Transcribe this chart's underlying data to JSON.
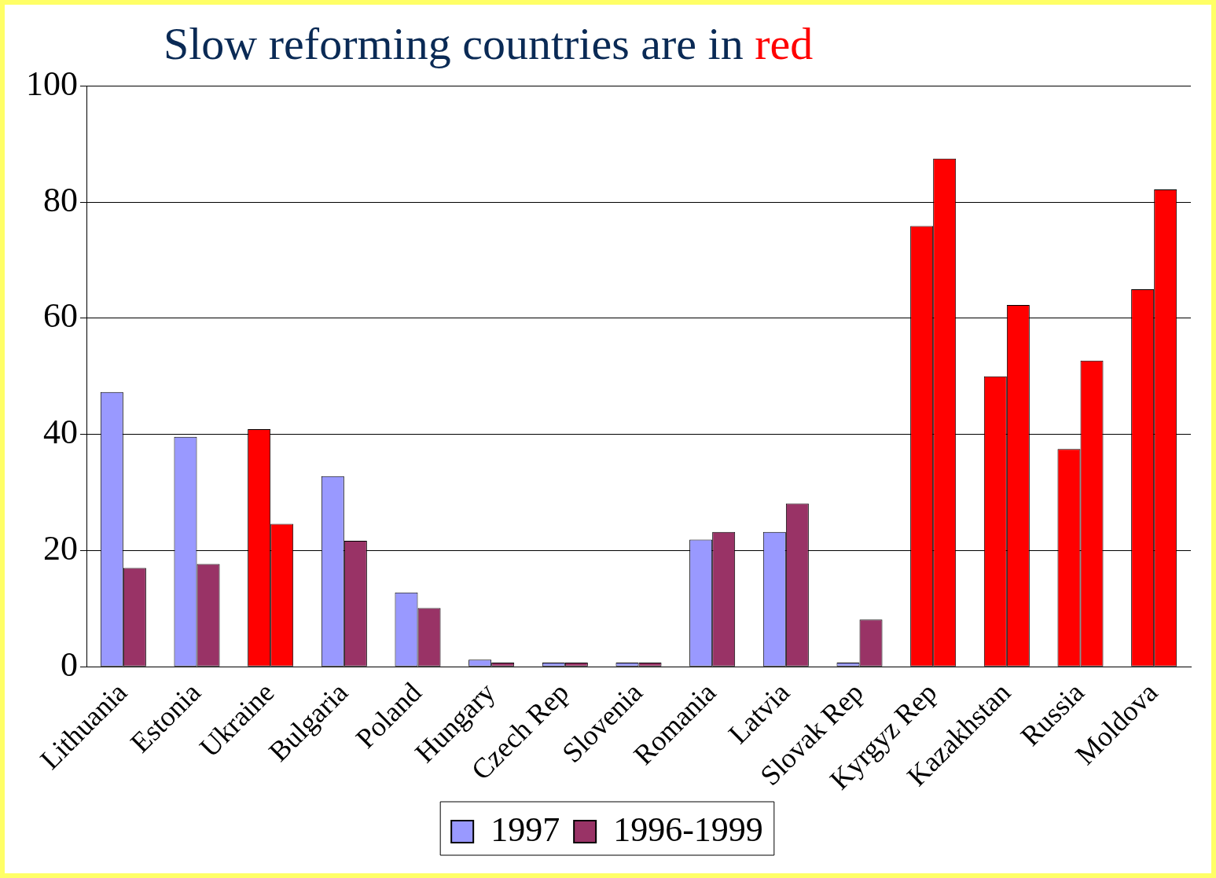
{
  "chart_data": {
    "type": "bar",
    "title": "Slow reforming countries are in red",
    "categories": [
      "Lithuania",
      "Estonia",
      "Ukraine",
      "Bulgaria",
      "Poland",
      "Hungary",
      "Czech Rep",
      "Slovenia",
      "Romania",
      "Latvia",
      "Slovak Rep",
      "Kyrgyz Rep",
      "Kazakhstan",
      "Russia",
      "Moldova"
    ],
    "series": [
      {
        "name": "1997",
        "color": "#9999ff",
        "colors": [
          "#9999ff",
          "#9999ff",
          "#ff0000",
          "#9999ff",
          "#9999ff",
          "#9999ff",
          "#9999ff",
          "#9999ff",
          "#9999ff",
          "#9999ff",
          "#9999ff",
          "#ff0000",
          "#ff0000",
          "#ff0000",
          "#ff0000"
        ],
        "values": [
          47.3,
          39.6,
          40.9,
          32.8,
          12.8,
          1.2,
          0.7,
          0.7,
          21.9,
          23.2,
          0.7,
          75.9,
          50.0,
          37.5,
          65.0
        ]
      },
      {
        "name": "1996-1999",
        "color": "#993366",
        "colors": [
          "#993366",
          "#993366",
          "#ff0000",
          "#993366",
          "#993366",
          "#993366",
          "#993366",
          "#993366",
          "#993366",
          "#993366",
          "#993366",
          "#ff0000",
          "#ff0000",
          "#ff0000",
          "#ff0000"
        ],
        "values": [
          17.0,
          17.7,
          24.6,
          21.7,
          10.1,
          0.7,
          0.7,
          0.7,
          23.2,
          28.1,
          8.1,
          87.5,
          62.3,
          52.7,
          82.2
        ]
      }
    ],
    "ylim": [
      0,
      100
    ],
    "yticks": [
      0,
      20,
      40,
      60,
      80,
      100
    ],
    "grid": "y",
    "legend": "bottom"
  }
}
